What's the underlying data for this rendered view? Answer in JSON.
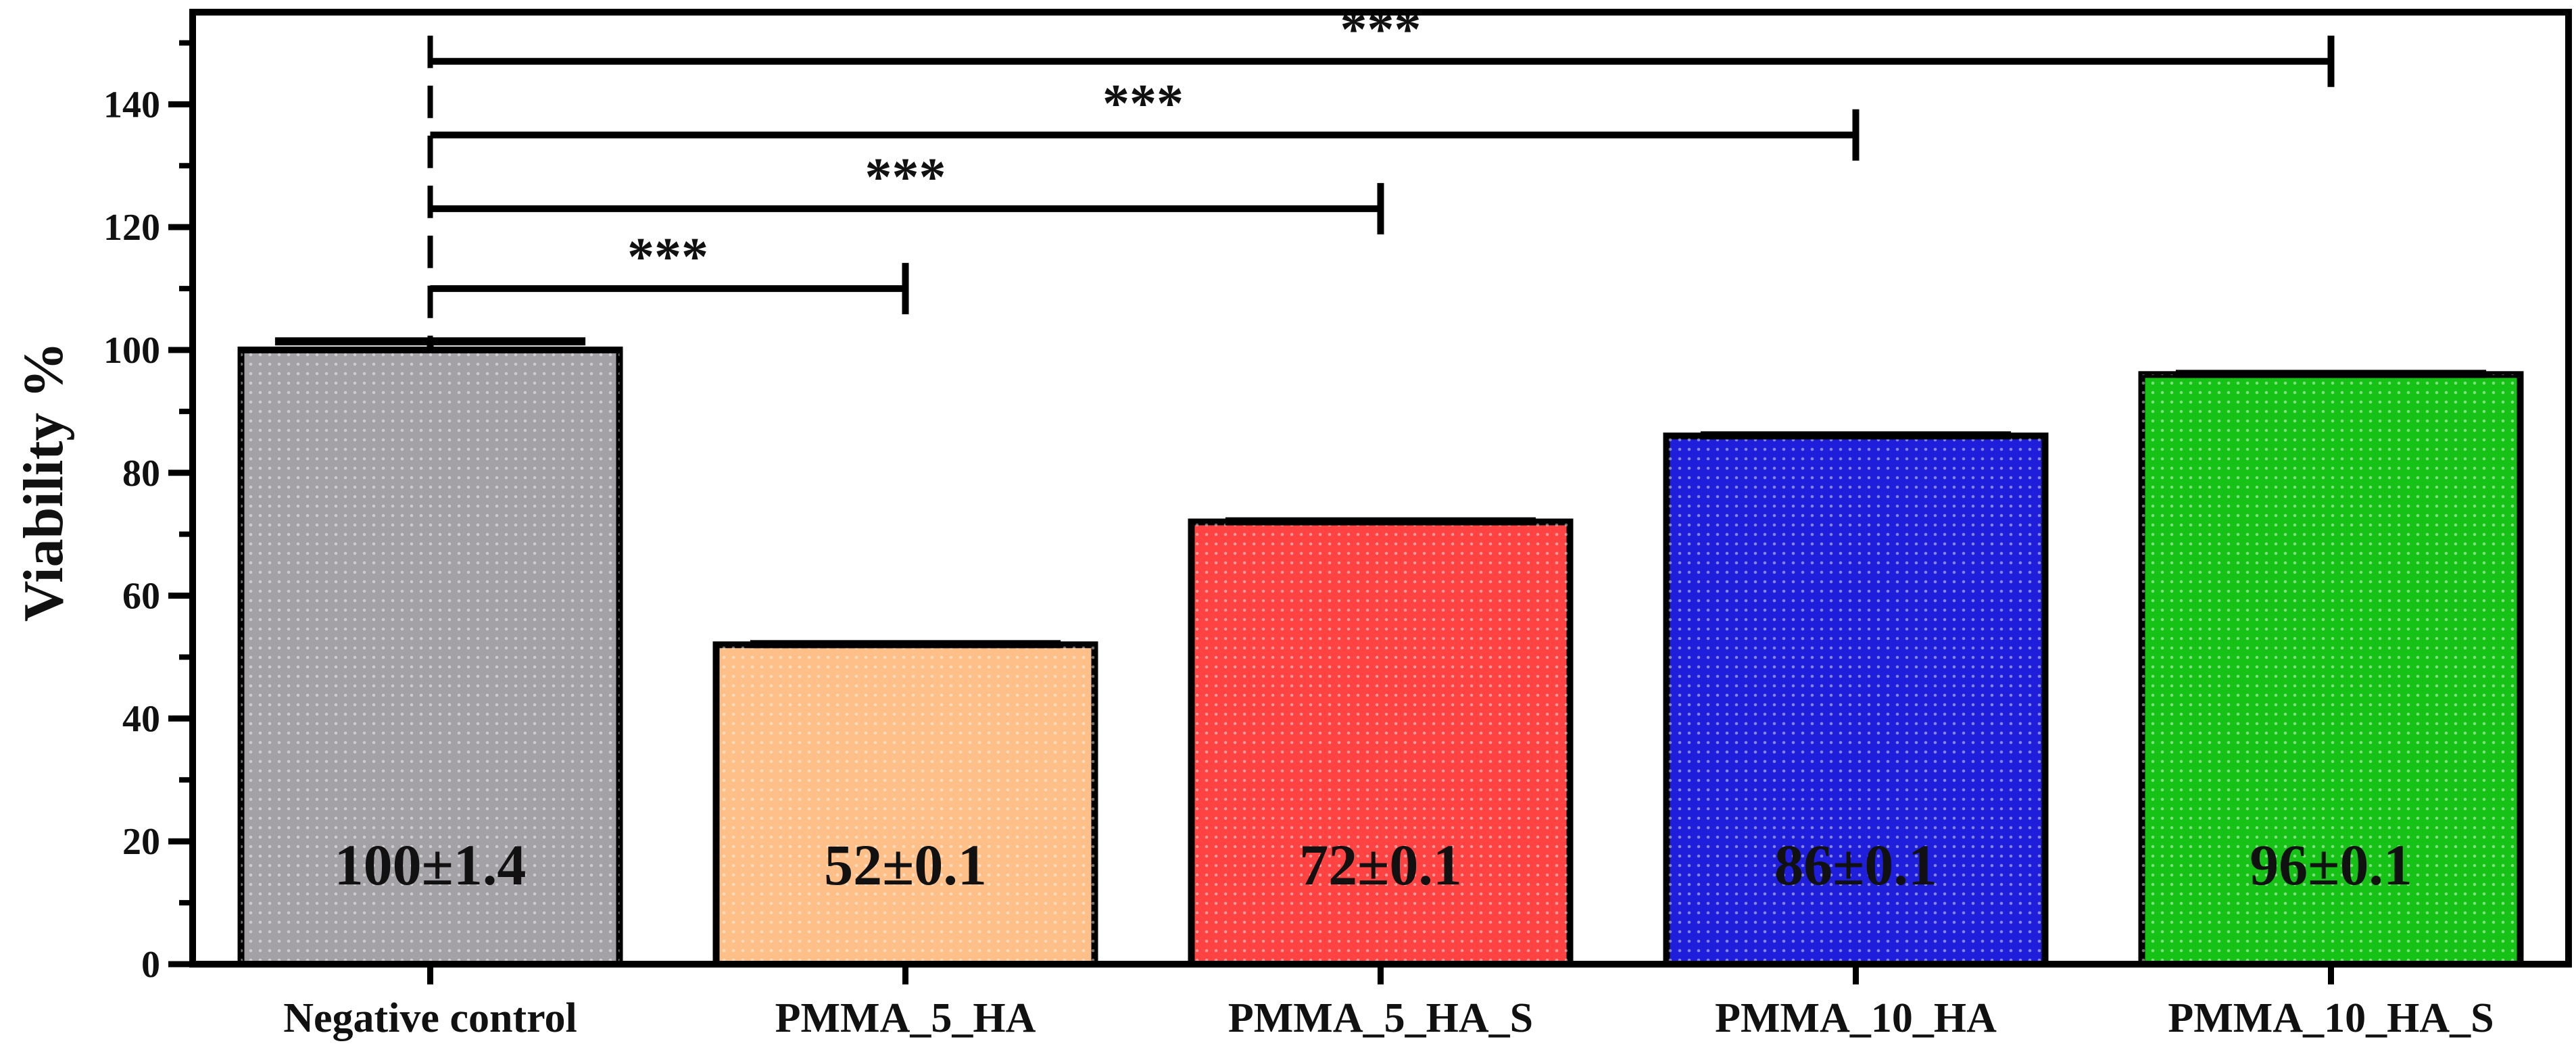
{
  "chart_data": {
    "type": "bar",
    "title": "",
    "xlabel": "",
    "ylabel": "Viability %",
    "ylim": [
      0,
      155
    ],
    "yticks": [
      "0",
      "20",
      "40",
      "60",
      "80",
      "100",
      "120",
      "140"
    ],
    "grid": false,
    "categories": [
      "Negative control",
      "PMMA_5_HA",
      "PMMA_5_HA_S",
      "PMMA_10_HA",
      "PMMA_10_HA_S"
    ],
    "values": [
      100,
      52,
      72,
      86,
      96
    ],
    "errors": [
      1.4,
      0.1,
      0.1,
      0.1,
      0.1
    ],
    "data_labels": [
      "100±1.4",
      "52±0.1",
      "72±0.1",
      "86±0.1",
      "96±0.1"
    ],
    "bar_colors": [
      "#a3a0a6",
      "#ffbf88",
      "#ff4343",
      "#1f1fdb",
      "#16c216"
    ],
    "significance": [
      {
        "from": 0,
        "to": 1,
        "y": 110,
        "label": "***"
      },
      {
        "from": 0,
        "to": 2,
        "y": 123,
        "label": "***"
      },
      {
        "from": 0,
        "to": 3,
        "y": 135,
        "label": "***"
      },
      {
        "from": 0,
        "to": 4,
        "y": 147,
        "label": "***"
      }
    ]
  }
}
